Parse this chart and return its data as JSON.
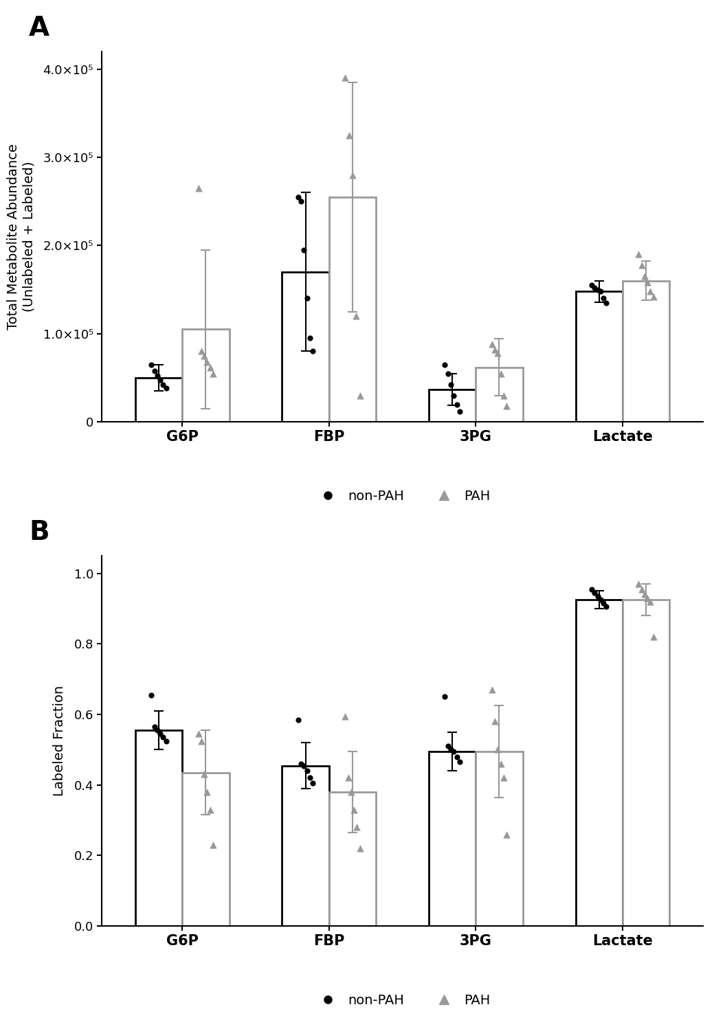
{
  "panel_A": {
    "title": "A",
    "ylabel": "Total Metabolite Abundance\n(Unlabeled + Labeled)",
    "categories": [
      "G6P",
      "FBP",
      "3PG",
      "Lactate"
    ],
    "nonPAH_bar": [
      50000,
      170000,
      37000,
      148000
    ],
    "PAH_bar": [
      105000,
      255000,
      62000,
      160000
    ],
    "nonPAH_err": [
      15000,
      90000,
      18000,
      12000
    ],
    "PAH_err": [
      90000,
      130000,
      32000,
      22000
    ],
    "nonPAH_points": [
      [
        65000,
        58000,
        52000,
        48000,
        42000,
        38000
      ],
      [
        255000,
        250000,
        195000,
        140000,
        95000,
        80000
      ],
      [
        65000,
        55000,
        42000,
        30000,
        20000,
        12000
      ],
      [
        155000,
        152000,
        150000,
        148000,
        140000,
        135000
      ]
    ],
    "PAH_points": [
      [
        265000,
        80000,
        75000,
        68000,
        62000,
        55000
      ],
      [
        390000,
        325000,
        280000,
        120000,
        30000
      ],
      [
        88000,
        82000,
        78000,
        55000,
        30000,
        18000
      ],
      [
        190000,
        178000,
        165000,
        158000,
        148000,
        142000
      ]
    ],
    "ylim": [
      0,
      420000
    ],
    "yticks": [
      0,
      100000,
      200000,
      300000,
      400000
    ],
    "ytick_labels": [
      "0",
      "1.0×10⁵",
      "2.0×10⁵",
      "3.0×10⁵",
      "4.0×10⁵"
    ]
  },
  "panel_B": {
    "title": "B",
    "ylabel": "Labeled Fraction",
    "categories": [
      "G6P",
      "FBP",
      "3PG",
      "Lactate"
    ],
    "nonPAH_bar": [
      0.555,
      0.455,
      0.495,
      0.925
    ],
    "PAH_bar": [
      0.435,
      0.38,
      0.495,
      0.925
    ],
    "nonPAH_err": [
      0.055,
      0.065,
      0.055,
      0.025
    ],
    "PAH_err": [
      0.12,
      0.115,
      0.13,
      0.045
    ],
    "nonPAH_points": [
      [
        0.655,
        0.565,
        0.555,
        0.545,
        0.535,
        0.525
      ],
      [
        0.585,
        0.46,
        0.455,
        0.44,
        0.42,
        0.405
      ],
      [
        0.65,
        0.51,
        0.5,
        0.495,
        0.48,
        0.465
      ],
      [
        0.955,
        0.945,
        0.935,
        0.925,
        0.915,
        0.905
      ]
    ],
    "PAH_points": [
      [
        0.545,
        0.525,
        0.43,
        0.38,
        0.33,
        0.23
      ],
      [
        0.595,
        0.42,
        0.38,
        0.33,
        0.28,
        0.22
      ],
      [
        0.67,
        0.58,
        0.5,
        0.46,
        0.42,
        0.26
      ],
      [
        0.97,
        0.955,
        0.94,
        0.93,
        0.92,
        0.82
      ]
    ],
    "ylim": [
      0,
      1.05
    ],
    "yticks": [
      0.0,
      0.2,
      0.4,
      0.6,
      0.8,
      1.0
    ],
    "ytick_labels": [
      "0.0",
      "0.2",
      "0.4",
      "0.6",
      "0.8",
      "1.0"
    ]
  },
  "bar_width": 0.32,
  "nonPAH_color": "#000000",
  "PAH_color": "#999999",
  "bar_fill_color": "#ffffff",
  "scatter_nonPAH_color": "#000000",
  "scatter_PAH_color": "#999999",
  "figsize": [
    10.55,
    14.98
  ],
  "dpi": 100
}
